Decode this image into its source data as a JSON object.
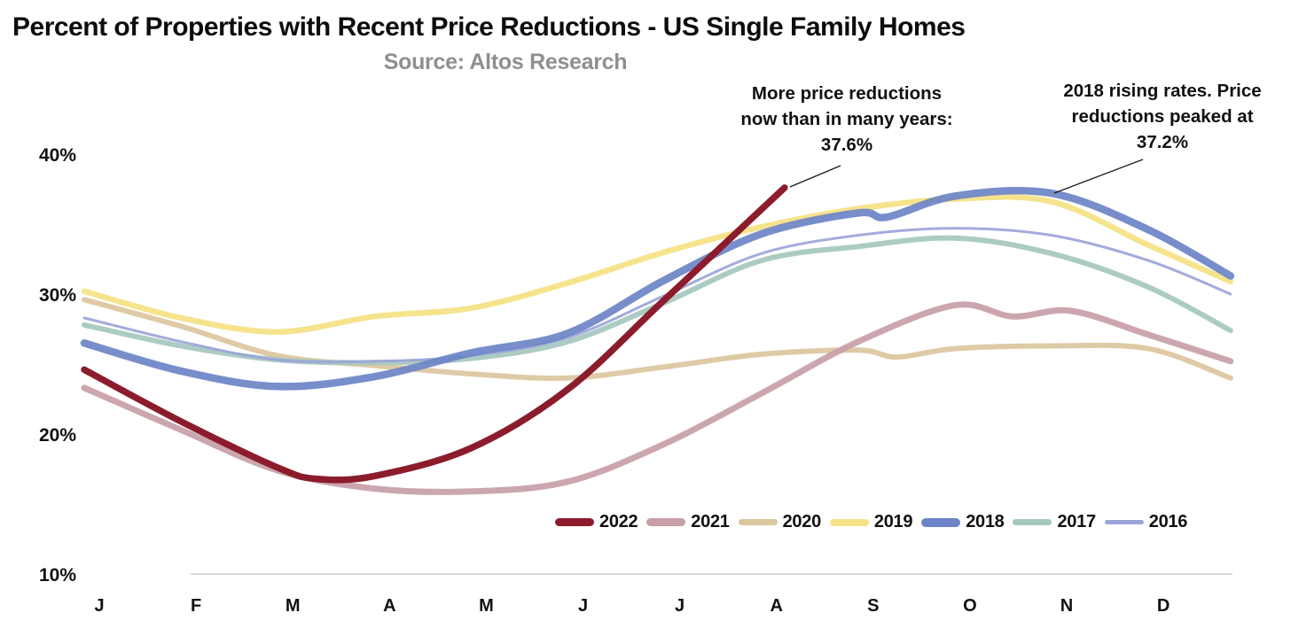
{
  "header": {
    "title": "Percent of Properties with Recent Price Reductions - US Single Family Homes",
    "subtitle": "Source: Altos Research"
  },
  "annotations": {
    "current": {
      "text": "More price reductions\nnow than in many years:\n37.6%",
      "value": "37.6%"
    },
    "peak2018": {
      "text": "2018 rising rates. Price\nreductions peaked at\n37.2%",
      "value": "37.2%"
    }
  },
  "chart_data": {
    "type": "line",
    "title": "Percent of Properties with Recent Price Reductions - US Single Family Homes",
    "source": "Source: Altos Research",
    "x_labels": [
      "J",
      "F",
      "M",
      "A",
      "M",
      "J",
      "J",
      "A",
      "S",
      "O",
      "N",
      "D"
    ],
    "y_ticks": [
      {
        "label": "40%",
        "value": 40
      },
      {
        "label": "30%",
        "value": 30
      },
      {
        "label": "20%",
        "value": 20
      },
      {
        "label": "10%",
        "value": 10
      }
    ],
    "y_range": [
      10,
      40
    ],
    "x_note": "months Jan-Dec; point positions in fractional months, values in percent",
    "legend_position": "bottom-center",
    "grid": false,
    "series": [
      {
        "name": "2022",
        "color": "#8C1C2C",
        "stroke_width": 7.5,
        "opacity": 1,
        "points": [
          [
            0,
            24.6
          ],
          [
            1,
            20.9
          ],
          [
            2,
            17.6
          ],
          [
            2.4,
            16.8
          ],
          [
            3,
            17.0
          ],
          [
            4,
            19.0
          ],
          [
            5,
            23.2
          ],
          [
            6,
            29.6
          ],
          [
            7.24,
            37.6
          ]
        ]
      },
      {
        "name": "2021",
        "color": "#C89EA7",
        "stroke_width": 7,
        "opacity": 0.92,
        "points": [
          [
            0,
            23.3
          ],
          [
            1,
            20.3
          ],
          [
            2,
            17.4
          ],
          [
            3,
            16.1
          ],
          [
            4,
            15.9
          ],
          [
            5,
            16.6
          ],
          [
            6,
            19.3
          ],
          [
            7,
            22.9
          ],
          [
            8,
            26.6
          ],
          [
            9,
            29.2
          ],
          [
            9.6,
            28.4
          ],
          [
            10.2,
            28.8
          ],
          [
            11,
            27.1
          ],
          [
            11.85,
            25.2
          ]
        ]
      },
      {
        "name": "2020",
        "color": "#DCC69E",
        "stroke_width": 6,
        "opacity": 0.92,
        "points": [
          [
            0,
            29.6
          ],
          [
            1,
            27.7
          ],
          [
            2,
            25.6
          ],
          [
            3,
            24.9
          ],
          [
            4,
            24.3
          ],
          [
            5,
            24.0
          ],
          [
            6,
            24.8
          ],
          [
            7,
            25.7
          ],
          [
            8,
            26.0
          ],
          [
            8.4,
            25.5
          ],
          [
            9,
            26.1
          ],
          [
            10,
            26.3
          ],
          [
            11,
            26.1
          ],
          [
            11.85,
            24.0
          ]
        ]
      },
      {
        "name": "2019",
        "color": "#F5E387",
        "stroke_width": 6.5,
        "opacity": 0.95,
        "points": [
          [
            0,
            30.2
          ],
          [
            1,
            28.3
          ],
          [
            2,
            27.3
          ],
          [
            3,
            28.4
          ],
          [
            4,
            29.0
          ],
          [
            5,
            30.8
          ],
          [
            6,
            33.0
          ],
          [
            7,
            34.8
          ],
          [
            8,
            36.1
          ],
          [
            9,
            36.8
          ],
          [
            10,
            36.6
          ],
          [
            11,
            33.5
          ],
          [
            11.85,
            30.9
          ]
        ]
      },
      {
        "name": "2018",
        "color": "#6D84C7",
        "stroke_width": 8.5,
        "opacity": 0.92,
        "points": [
          [
            0,
            26.5
          ],
          [
            1,
            24.5
          ],
          [
            2,
            23.4
          ],
          [
            3,
            24.1
          ],
          [
            4,
            25.8
          ],
          [
            5,
            27.2
          ],
          [
            6,
            31.0
          ],
          [
            7,
            34.3
          ],
          [
            8,
            35.8
          ],
          [
            8.3,
            35.5
          ],
          [
            9,
            37.0
          ],
          [
            10,
            37.2
          ],
          [
            11,
            34.6
          ],
          [
            11.85,
            31.3
          ]
        ]
      },
      {
        "name": "2017",
        "color": "#A5C8BE",
        "stroke_width": 6,
        "opacity": 0.92,
        "points": [
          [
            0,
            27.8
          ],
          [
            1,
            26.3
          ],
          [
            2,
            25.3
          ],
          [
            3,
            25.1
          ],
          [
            4,
            25.4
          ],
          [
            5,
            26.6
          ],
          [
            6,
            29.4
          ],
          [
            7,
            32.4
          ],
          [
            8,
            33.4
          ],
          [
            9,
            34.0
          ],
          [
            10,
            32.9
          ],
          [
            11,
            30.5
          ],
          [
            11.85,
            27.4
          ]
        ]
      },
      {
        "name": "2016",
        "color": "#9BA4D9",
        "stroke_width": 3,
        "opacity": 0.92,
        "points": [
          [
            0,
            28.3
          ],
          [
            1,
            26.6
          ],
          [
            2,
            25.3
          ],
          [
            3,
            25.2
          ],
          [
            4,
            25.6
          ],
          [
            5,
            26.9
          ],
          [
            6,
            29.9
          ],
          [
            7,
            32.9
          ],
          [
            8,
            34.2
          ],
          [
            9,
            34.7
          ],
          [
            10,
            34.2
          ],
          [
            11,
            32.4
          ],
          [
            11.85,
            30.0
          ]
        ]
      }
    ],
    "annotated_points": [
      {
        "series": "2022",
        "label": "37.6%",
        "note": "More price reductions now than in many years"
      },
      {
        "series": "2018",
        "label": "37.2%",
        "note": "2018 rising rates. Price reductions peaked"
      }
    ]
  }
}
